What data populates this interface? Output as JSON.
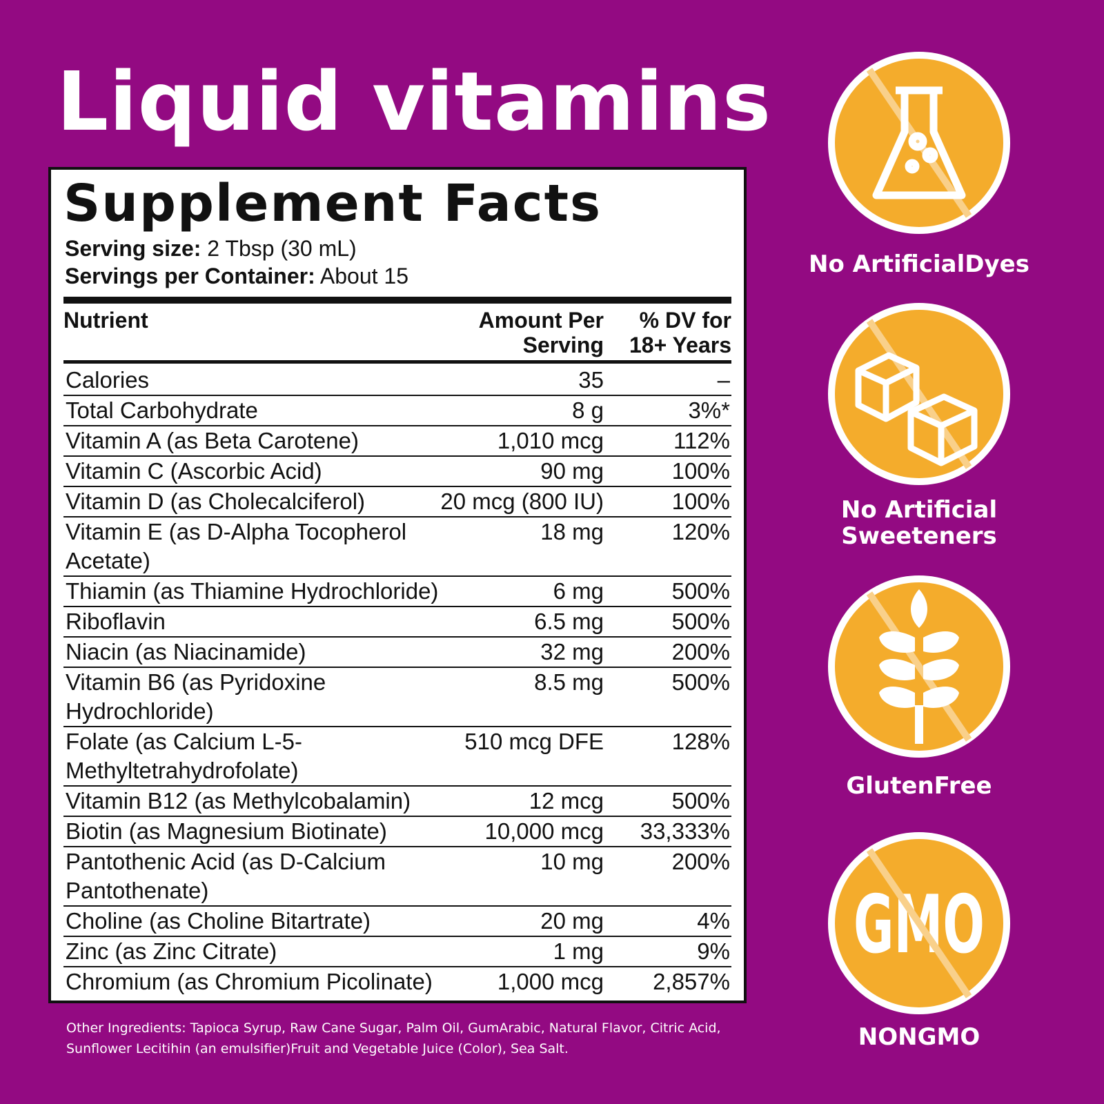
{
  "header": {
    "title": "Liquid vitamins"
  },
  "facts": {
    "title": "Supplement Facts",
    "serving_size_label": "Serving size:",
    "serving_size": "2 Tbsp (30 mL)",
    "servings_label": "Servings per Container:",
    "servings": "About 15",
    "columns": [
      "Nutrient",
      "Amount Per Serving",
      "% DV for 18+ Years"
    ],
    "rows": [
      [
        "Calories",
        "35",
        "–"
      ],
      [
        "Total Carbohydrate",
        "8 g",
        "3%*"
      ],
      [
        "Vitamin A (as Beta Carotene)",
        "1,010 mcg",
        "112%"
      ],
      [
        "Vitamin C (Ascorbic Acid)",
        "90 mg",
        "100%"
      ],
      [
        "Vitamin D (as Cholecalciferol)",
        "20 mcg (800 IU)",
        "100%"
      ],
      [
        "Vitamin E (as D-Alpha Tocopherol Acetate)",
        "18 mg",
        "120%"
      ],
      [
        "Thiamin (as Thiamine Hydrochloride)",
        "6 mg",
        "500%"
      ],
      [
        "Riboflavin",
        "6.5 mg",
        "500%"
      ],
      [
        "Niacin (as Niacinamide)",
        "32 mg",
        "200%"
      ],
      [
        "Vitamin B6 (as Pyridoxine Hydrochloride)",
        "8.5 mg",
        "500%"
      ],
      [
        "Folate (as Calcium L-5-Methyltetrahydrofolate)",
        "510 mcg DFE",
        "128%"
      ],
      [
        "Vitamin B12 (as Methylcobalamin)",
        "12 mcg",
        "500%"
      ],
      [
        "Biotin (as Magnesium Biotinate)",
        "10,000 mcg",
        "33,333%"
      ],
      [
        "Pantothenic Acid (as D-Calcium Pantothenate)",
        "10 mg",
        "200%"
      ],
      [
        "Choline (as Choline Bitartrate)",
        "20 mg",
        "4%"
      ],
      [
        "Zinc (as Zinc Citrate)",
        "1 mg",
        "9%"
      ],
      [
        "Chromium (as Chromium Picolinate)",
        "1,000 mcg",
        "2,857%"
      ]
    ]
  },
  "other_ingredients": "Other Ingredients: Tapioca Syrup, Raw Cane Sugar, Palm Oil, GumArabic, Natural Flavor, Citric Acid, Sunflower Lecitihin (an emulsifier)Fruit and Vegetable Juice (Color), Sea Salt.",
  "badges": [
    {
      "label": "No ArtificialDyes"
    },
    {
      "label": "No Artificial Sweeteners"
    },
    {
      "label": "GlutenFree"
    },
    {
      "label": "NONGMO",
      "icon_text": "GMO"
    }
  ]
}
